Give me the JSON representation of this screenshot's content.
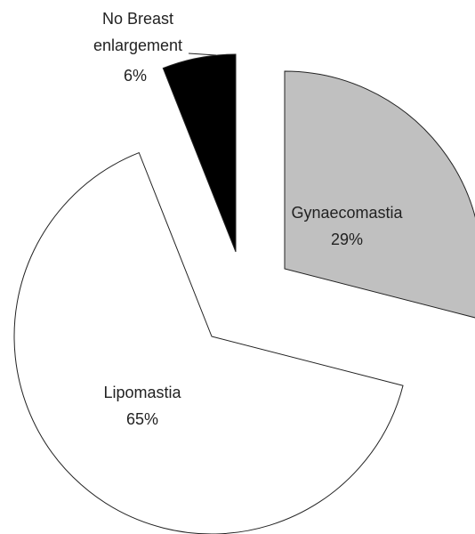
{
  "chart_data": {
    "type": "pie",
    "categories": [
      "Gynaecomastia",
      "Lipomastia",
      "No Breast enlargement"
    ],
    "values": [
      29,
      65,
      6
    ],
    "value_labels": [
      "29%",
      "65%",
      "6%"
    ],
    "colors": [
      "#c0c0c0",
      "#ffffff",
      "#000000"
    ]
  }
}
